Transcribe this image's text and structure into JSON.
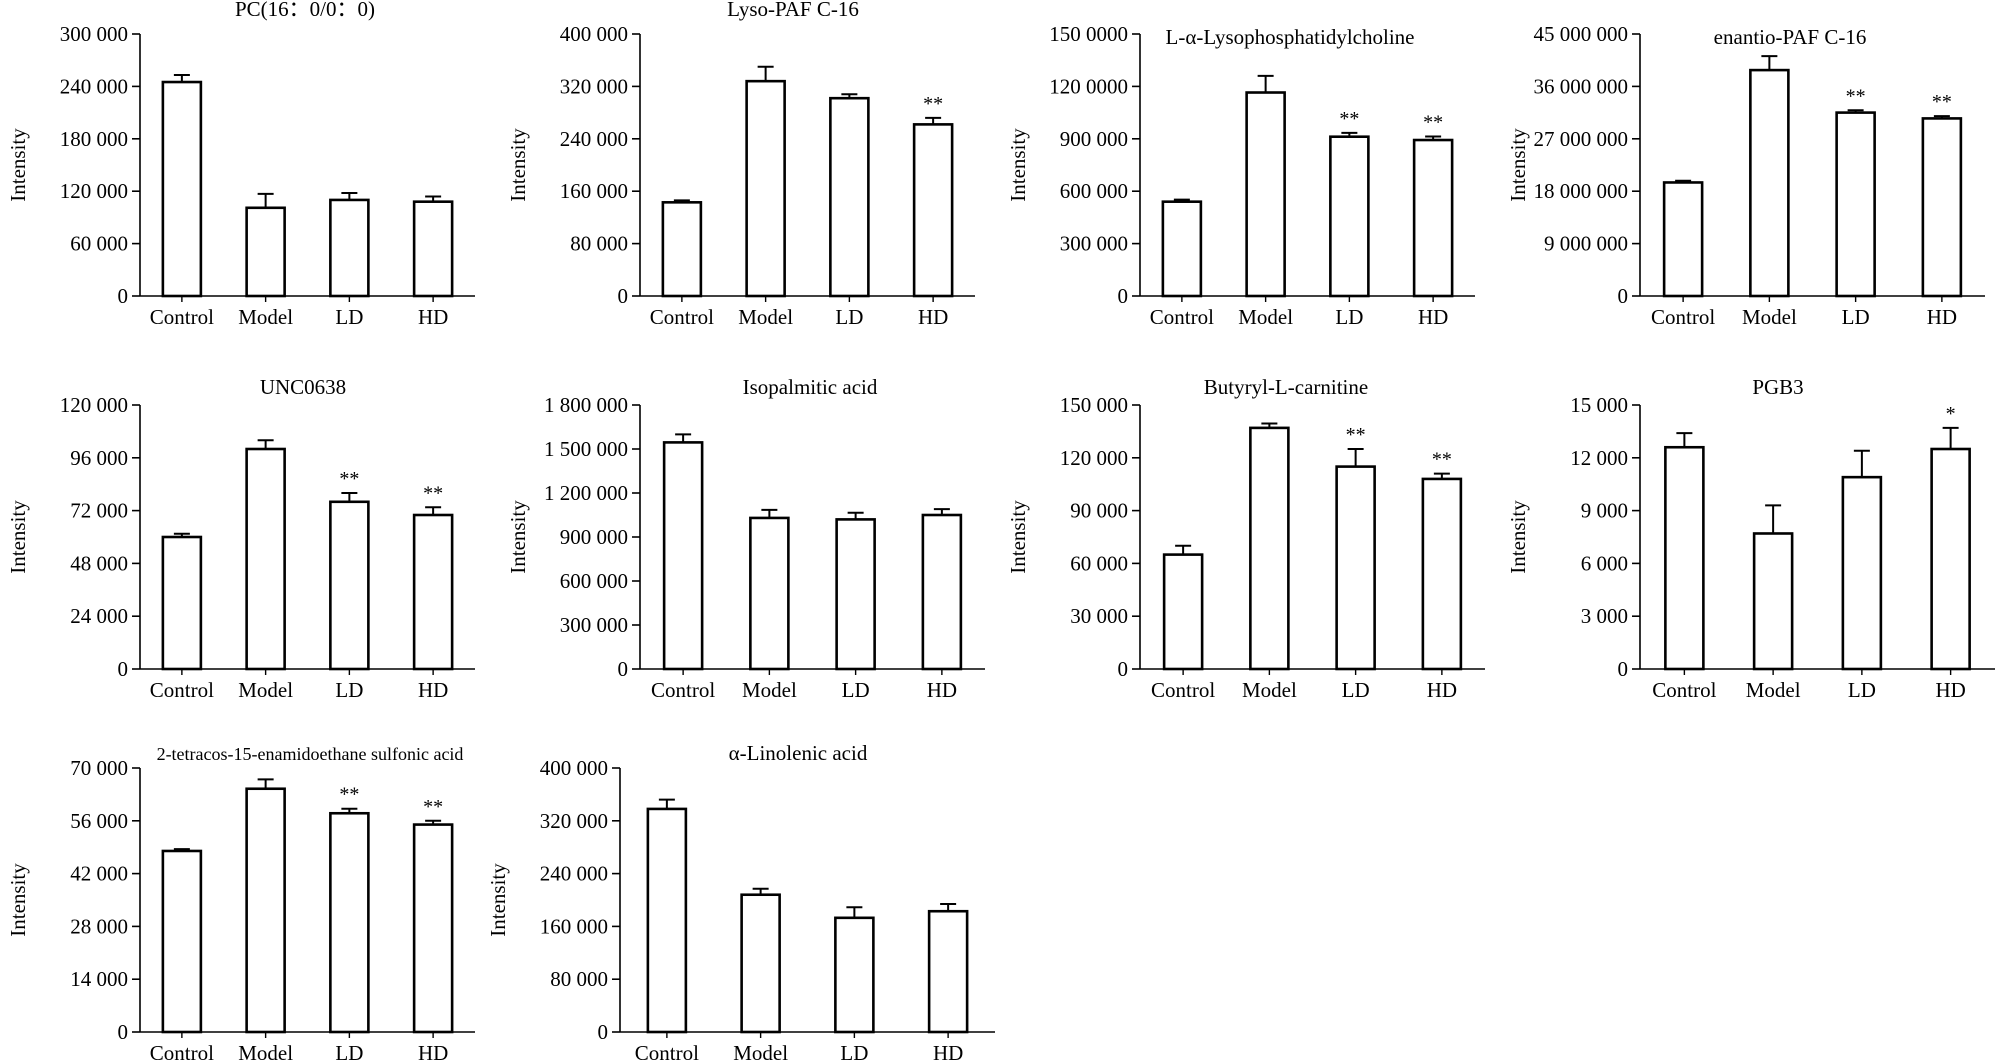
{
  "figure": {
    "bar_color": "#ffffff",
    "stroke_color": "#000000"
  },
  "chart_data": [
    {
      "type": "bar",
      "title": "PC(16：0/0：0)",
      "ylabel": "Intensity",
      "xlabel": "",
      "categories": [
        "Control",
        "Model",
        "LD",
        "HD"
      ],
      "values": [
        245000,
        101000,
        110000,
        108000
      ],
      "errors": [
        8000,
        16000,
        8000,
        6000
      ],
      "significance": [
        "",
        "",
        "",
        ""
      ],
      "ylim": [
        0,
        300000
      ],
      "yticks": [
        0,
        60000,
        120000,
        180000,
        240000,
        300000
      ],
      "ytick_labels": [
        "0",
        "60 000",
        "120 000",
        "180 000",
        "240 000",
        "300 000"
      ]
    },
    {
      "type": "bar",
      "title": "Lyso-PAF C-16",
      "ylabel": "Intensity",
      "xlabel": "",
      "categories": [
        "Control",
        "Model",
        "LD",
        "HD"
      ],
      "values": [
        143000,
        328000,
        302000,
        262000
      ],
      "errors": [
        3000,
        22000,
        6000,
        10000
      ],
      "significance": [
        "",
        "",
        "",
        "**"
      ],
      "ylim": [
        0,
        400000
      ],
      "yticks": [
        0,
        80000,
        160000,
        240000,
        320000,
        400000
      ],
      "ytick_labels": [
        "0",
        "80 000",
        "160 000",
        "240 000",
        "320 000",
        "400 000"
      ]
    },
    {
      "type": "bar",
      "title": "L-α-Lysophosphatidylcholine",
      "ylabel": "Intensity",
      "xlabel": "",
      "categories": [
        "Control",
        "Model",
        "LD",
        "HD"
      ],
      "values": [
        540000,
        1165000,
        912000,
        893000
      ],
      "errors": [
        12000,
        95000,
        22000,
        20000
      ],
      "significance": [
        "",
        "",
        "**",
        "**"
      ],
      "ylim": [
        0,
        1500000
      ],
      "yticks": [
        0,
        300000,
        600000,
        900000,
        1200000,
        1500000
      ],
      "ytick_labels": [
        "0",
        "300 000",
        "600 000",
        "900 000",
        "120 0000",
        "150 0000"
      ]
    },
    {
      "type": "bar",
      "title": "enantio-PAF C-16",
      "ylabel": "Intensity",
      "xlabel": "",
      "categories": [
        "Control",
        "Model",
        "LD",
        "HD"
      ],
      "values": [
        19500000,
        38800000,
        31500000,
        30500000
      ],
      "errors": [
        300000,
        2400000,
        400000,
        400000
      ],
      "significance": [
        "",
        "",
        "**",
        "**"
      ],
      "ylim": [
        0,
        45000000
      ],
      "yticks": [
        0,
        9000000,
        18000000,
        27000000,
        36000000,
        45000000
      ],
      "ytick_labels": [
        "0",
        "9 000 000",
        "18 000 000",
        "27 000 000",
        "36 000 000",
        "45 000 000"
      ]
    },
    {
      "type": "bar",
      "title": "UNC0638",
      "ylabel": "Intensity",
      "xlabel": "",
      "categories": [
        "Control",
        "Model",
        "LD",
        "HD"
      ],
      "values": [
        60000,
        100000,
        76000,
        70000
      ],
      "errors": [
        1500,
        4000,
        4000,
        3500
      ],
      "significance": [
        "",
        "",
        "**",
        "**"
      ],
      "ylim": [
        0,
        120000
      ],
      "yticks": [
        0,
        24000,
        48000,
        72000,
        96000,
        120000
      ],
      "ytick_labels": [
        "0",
        "24 000",
        "48 000",
        "72 000",
        "96 000",
        "120 000"
      ]
    },
    {
      "type": "bar",
      "title": "Isopalmitic acid",
      "ylabel": "Intensity",
      "xlabel": "",
      "categories": [
        "Control",
        "Model",
        "LD",
        "HD"
      ],
      "values": [
        1545000,
        1030000,
        1020000,
        1050000
      ],
      "errors": [
        55000,
        55000,
        45000,
        40000
      ],
      "significance": [
        "",
        "",
        "",
        ""
      ],
      "ylim": [
        0,
        1800000
      ],
      "yticks": [
        0,
        300000,
        600000,
        900000,
        1200000,
        1500000,
        1800000
      ],
      "ytick_labels": [
        "0",
        "300 000",
        "600 000",
        "900 000",
        "1 200 000",
        "1 500 000",
        "1 800 000"
      ]
    },
    {
      "type": "bar",
      "title": "Butyryl-L-carnitine",
      "ylabel": "Intensity",
      "xlabel": "",
      "categories": [
        "Control",
        "Model",
        "LD",
        "HD"
      ],
      "values": [
        65000,
        137000,
        115000,
        108000
      ],
      "errors": [
        5000,
        2500,
        10000,
        3000
      ],
      "significance": [
        "",
        "",
        "**",
        "**"
      ],
      "ylim": [
        0,
        150000
      ],
      "yticks": [
        0,
        30000,
        60000,
        90000,
        120000,
        150000
      ],
      "ytick_labels": [
        "0",
        "30 000",
        "60 000",
        "90 000",
        "120 000",
        "150 000"
      ]
    },
    {
      "type": "bar",
      "title": "PGB3",
      "ylabel": "Intensity",
      "xlabel": "",
      "categories": [
        "Control",
        "Model",
        "LD",
        "HD"
      ],
      "values": [
        12600,
        7700,
        10900,
        12500
      ],
      "errors": [
        800,
        1600,
        1500,
        1200
      ],
      "significance": [
        "",
        "",
        "",
        "*"
      ],
      "ylim": [
        0,
        15000
      ],
      "yticks": [
        0,
        3000,
        6000,
        9000,
        12000,
        15000
      ],
      "ytick_labels": [
        "0",
        "3 000",
        "6 000",
        "9 000",
        "12 000",
        "15 000"
      ]
    },
    {
      "type": "bar",
      "title": "2-tetracos-15-enamidoethane sulfonic acid",
      "ylabel": "Intensity",
      "xlabel": "",
      "categories": [
        "Control",
        "Model",
        "LD",
        "HD"
      ],
      "values": [
        48000,
        64500,
        58000,
        55000
      ],
      "errors": [
        500,
        2500,
        1200,
        1000
      ],
      "significance": [
        "",
        "",
        "**",
        "**"
      ],
      "ylim": [
        0,
        70000
      ],
      "yticks": [
        0,
        14000,
        28000,
        42000,
        56000,
        70000
      ],
      "ytick_labels": [
        "0",
        "14 000",
        "28 000",
        "42 000",
        "56 000",
        "70 000"
      ]
    },
    {
      "type": "bar",
      "title": "α-Linolenic acid",
      "ylabel": "Intensity",
      "xlabel": "",
      "categories": [
        "Control",
        "Model",
        "LD",
        "HD"
      ],
      "values": [
        338000,
        208000,
        173000,
        183000
      ],
      "errors": [
        14000,
        9000,
        16000,
        11000
      ],
      "significance": [
        "",
        "",
        "",
        ""
      ],
      "ylim": [
        0,
        400000
      ],
      "yticks": [
        0,
        80000,
        160000,
        240000,
        320000,
        400000
      ],
      "ytick_labels": [
        "0",
        "80 000",
        "160 000",
        "240 000",
        "320 000",
        "400 000"
      ]
    }
  ]
}
